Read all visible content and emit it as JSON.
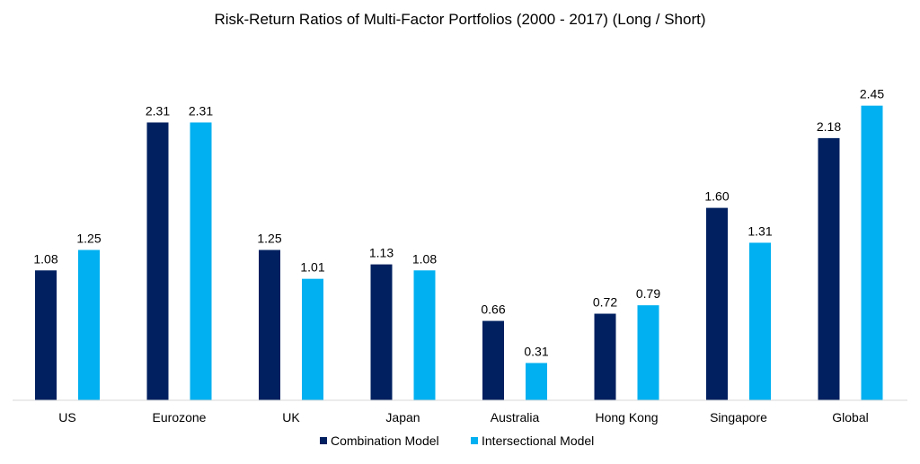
{
  "chart_data": {
    "type": "bar",
    "title": "Risk-Return Ratios of Multi-Factor Portfolios (2000 - 2017) (Long / Short)",
    "xlabel": "",
    "ylabel": "",
    "ylim": [
      0,
      2.6
    ],
    "grid": false,
    "legend": "bottom",
    "categories": [
      "US",
      "Eurozone",
      "UK",
      "Japan",
      "Australia",
      "Hong Kong",
      "Singapore",
      "Global"
    ],
    "series": [
      {
        "name": "Combination Model",
        "color": "#002060",
        "values": [
          1.08,
          2.31,
          1.25,
          1.13,
          0.66,
          0.72,
          1.6,
          2.18
        ]
      },
      {
        "name": "Intersectional Model",
        "color": "#00B0F0",
        "values": [
          1.25,
          2.31,
          1.01,
          1.08,
          0.31,
          0.79,
          1.31,
          2.45
        ]
      }
    ]
  }
}
